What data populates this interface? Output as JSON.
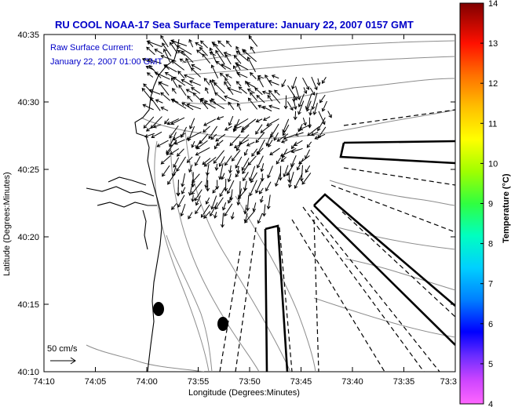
{
  "title": "RU COOL  NOAA-17  Sea Surface Temperature:  January 22, 2007 0157 GMT",
  "current_label": "Raw Surface Current:",
  "current_time": "January 22, 2007 01:00 GMT",
  "scale_label": "50 cm/s",
  "xlabel": "Longitude (Degrees:Minutes)",
  "ylabel": "Latitude (Degrees:Minutes)",
  "colorbar_label": "Temperature (°C)",
  "x_ticks": [
    "74:10",
    "74:05",
    "74:00",
    "73:55",
    "73:50",
    "73:45",
    "73:40",
    "73:35",
    "73:3"
  ],
  "y_ticks": [
    "40:35",
    "40:30",
    "40:25",
    "40:20",
    "40:15",
    "40:10"
  ],
  "colorbar_ticks": [
    "14",
    "13",
    "12",
    "11",
    "10",
    "9",
    "8",
    "7",
    "6",
    "5",
    "4"
  ],
  "colors": {
    "title": "#0000c8",
    "coast": "#000000",
    "contour": "#8c8c8c"
  }
}
